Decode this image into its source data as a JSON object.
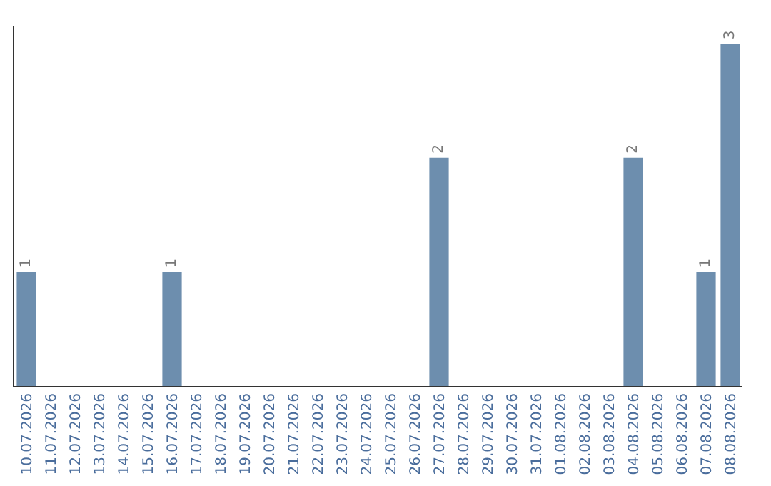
{
  "chart_data": {
    "type": "bar",
    "categories": [
      "10.07.2026",
      "11.07.2026",
      "12.07.2026",
      "13.07.2026",
      "14.07.2026",
      "15.07.2026",
      "16.07.2026",
      "17.07.2026",
      "18.07.2026",
      "19.07.2026",
      "20.07.2026",
      "21.07.2026",
      "22.07.2026",
      "23.07.2026",
      "24.07.2026",
      "25.07.2026",
      "26.07.2026",
      "27.07.2026",
      "28.07.2026",
      "29.07.2026",
      "30.07.2026",
      "31.07.2026",
      "01.08.2026",
      "02.08.2026",
      "03.08.2026",
      "04.08.2026",
      "05.08.2026",
      "06.08.2026",
      "07.08.2026",
      "08.08.2026"
    ],
    "values": [
      1,
      0,
      0,
      0,
      0,
      0,
      1,
      0,
      0,
      0,
      0,
      0,
      0,
      0,
      0,
      0,
      0,
      2,
      0,
      0,
      0,
      0,
      0,
      0,
      0,
      2,
      0,
      0,
      1,
      3
    ],
    "value_labels": [
      "1",
      null,
      null,
      null,
      null,
      null,
      "1",
      null,
      null,
      null,
      null,
      null,
      null,
      null,
      null,
      null,
      null,
      "2",
      null,
      null,
      null,
      null,
      null,
      null,
      null,
      "2",
      null,
      null,
      "1",
      "3"
    ],
    "color": "#6d8eae",
    "grid": false,
    "legend": false,
    "tick_labels": "x"
  }
}
